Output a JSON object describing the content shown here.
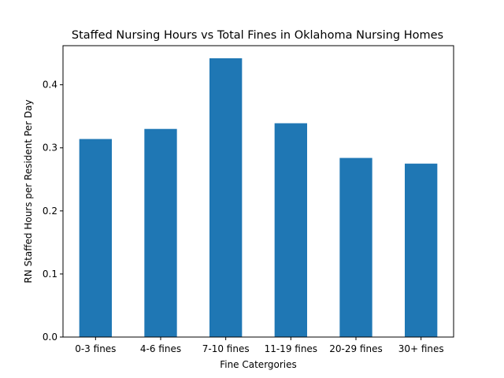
{
  "chart_data": {
    "type": "bar",
    "title": "Staffed Nursing Hours vs Total Fines in Oklahoma Nursing Homes",
    "xlabel": "Fine Catergories",
    "ylabel": "RN Staffed Hours per Resident Per Day",
    "categories": [
      "0-3 fines",
      "4-6 fines",
      "7-10 fines",
      "11-19 fines",
      "20-29 fines",
      "30+ fines"
    ],
    "values": [
      0.314,
      0.33,
      0.442,
      0.339,
      0.284,
      0.275
    ],
    "ylim": [
      0,
      0.462
    ],
    "yticks": [
      0.0,
      0.1,
      0.2,
      0.3,
      0.4
    ],
    "ytick_labels": [
      "0.0",
      "0.1",
      "0.2",
      "0.3",
      "0.4"
    ],
    "bar_color": "#1f77b4",
    "grid": false,
    "legend": "none"
  }
}
